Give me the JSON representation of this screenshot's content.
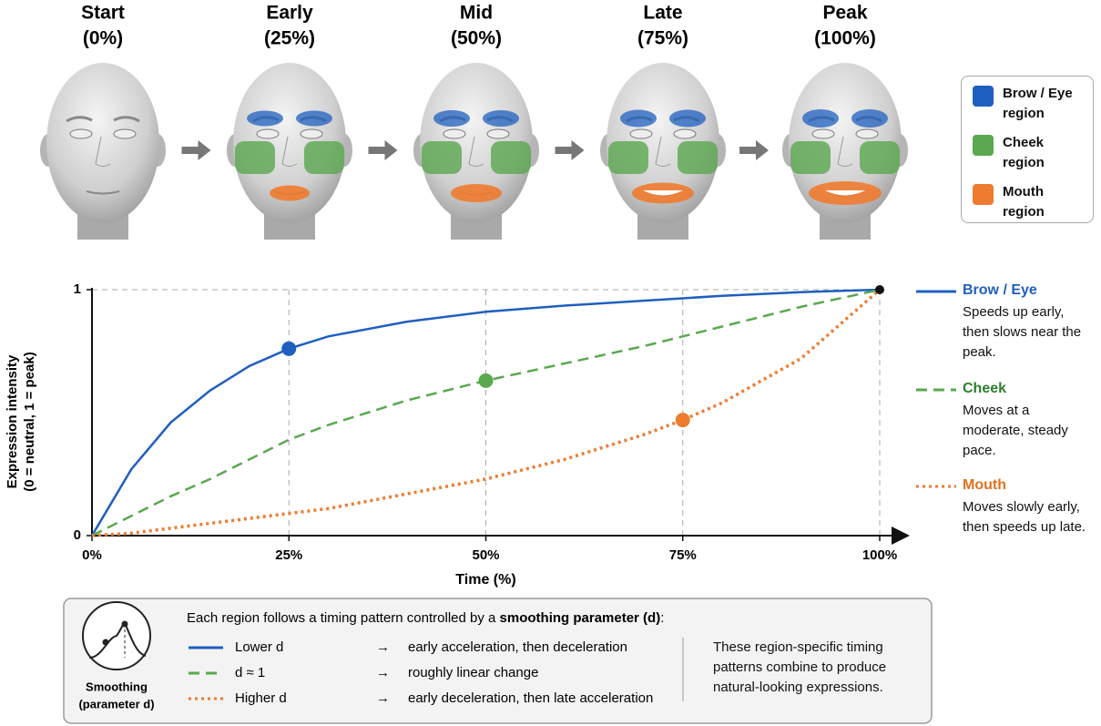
{
  "stages": [
    {
      "label": "Start",
      "percent": "(0%)"
    },
    {
      "label": "Early",
      "percent": "(25%)"
    },
    {
      "label": "Mid",
      "percent": "(50%)"
    },
    {
      "label": "Late",
      "percent": "(75%)"
    },
    {
      "label": "Peak",
      "percent": "(100%)"
    }
  ],
  "region_legend": [
    {
      "label": "Brow / Eye region",
      "color": "#1f5fbf"
    },
    {
      "label": "Cheek region",
      "color": "#5aa84f"
    },
    {
      "label": "Mouth region",
      "color": "#ee7b30"
    }
  ],
  "chart_data": {
    "type": "line",
    "x_label": "Time (%)",
    "y_label": [
      "Expression intensity",
      "(0 = neutral, 1 = peak)"
    ],
    "x": [
      0,
      5,
      10,
      15,
      20,
      25,
      30,
      40,
      50,
      60,
      70,
      75,
      80,
      90,
      100
    ],
    "series": [
      {
        "name": "Brow / Eye",
        "color": "#1f5fbf",
        "label_color": "#1f5fbf",
        "line_style": "solid",
        "highlight_x": 25,
        "description": "Speeds up early, then slows near the peak.",
        "values": [
          0,
          0.27,
          0.46,
          0.59,
          0.69,
          0.76,
          0.81,
          0.87,
          0.91,
          0.935,
          0.955,
          0.965,
          0.975,
          0.99,
          1
        ]
      },
      {
        "name": "Cheek",
        "color": "#5aa84f",
        "label_color": "#2e7d2e",
        "line_style": "dashed",
        "highlight_x": 50,
        "description": "Moves at a moderate, steady pace.",
        "values": [
          0,
          0.08,
          0.16,
          0.23,
          0.31,
          0.39,
          0.45,
          0.55,
          0.63,
          0.7,
          0.77,
          0.81,
          0.85,
          0.93,
          1
        ]
      },
      {
        "name": "Mouth",
        "color": "#ee7b30",
        "label_color": "#e2711f",
        "line_style": "dotted",
        "highlight_x": 75,
        "description": "Moves slowly early, then speeds up late.",
        "values": [
          0,
          0.01,
          0.03,
          0.05,
          0.07,
          0.09,
          0.11,
          0.17,
          0.23,
          0.31,
          0.41,
          0.47,
          0.54,
          0.72,
          1
        ]
      }
    ],
    "xlim": [
      0,
      100
    ],
    "xticks": [
      {
        "value": 0,
        "label": "0%"
      },
      {
        "value": 25,
        "label": "25%"
      },
      {
        "value": 50,
        "label": "50%"
      },
      {
        "value": 75,
        "label": "75%"
      },
      {
        "value": 100,
        "label": "100%"
      }
    ],
    "ylim": [
      0,
      1
    ],
    "yticks": [
      0,
      1
    ],
    "grid": true
  },
  "smoothing_box": {
    "icon_label": [
      "Smoothing",
      "(parameter d)"
    ],
    "intro": "Each region follows a timing pattern controlled by a ",
    "intro_bold": "smoothing parameter (d)",
    "intro_end": ":",
    "rows": [
      {
        "setting": "Lower d",
        "arrow": "→",
        "effect": "early acceleration, then deceleration"
      },
      {
        "setting": "d ≈ 1",
        "arrow": "→",
        "effect": "roughly linear change"
      },
      {
        "setting": "Higher d",
        "arrow": "→",
        "effect": "early deceleration, then late acceleration"
      }
    ],
    "note": "These region-specific timing patterns combine to produce natural-looking expressions."
  }
}
